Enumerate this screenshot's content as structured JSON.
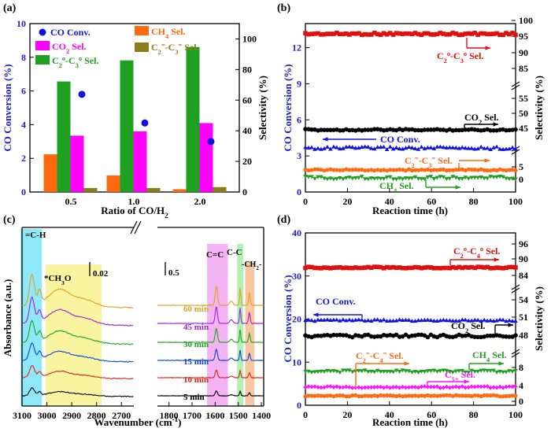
{
  "panels": {
    "a": {
      "label": "(a)"
    },
    "b": {
      "label": "(b)"
    },
    "c": {
      "label": "(c)"
    },
    "d": {
      "label": "(d)"
    }
  },
  "colors": {
    "co_conv": "#1010e0",
    "co2": "#ff00ff",
    "ch4": "#ff6a10",
    "c2c3_olefin": "#20a020",
    "c2c3_paraffin": "#8b7d1a",
    "olefin_red": "#e01010",
    "black": "#000000",
    "c5": "#ff10ff",
    "blue_axis": "#2020c0",
    "spec_black": "#000000",
    "spec_red": "#e02020",
    "spec_blue": "#1040e0",
    "spec_green": "#20a020",
    "spec_purple": "#a020e0",
    "spec_orange": "#e0a020",
    "band_cyan": "#8ee8f8",
    "band_yellow": "#f8f4a0",
    "band_pink": "#f4b4f4",
    "band_green": "#b4f0b4",
    "band_orange": "#f8c8a0"
  },
  "chart_data": [
    {
      "panel": "a",
      "type": "bar",
      "categories": [
        "0.5",
        "1.0",
        "2.0"
      ],
      "xlabel": "Ratio of CO/H2",
      "ylabel": "CO Conversion (%)",
      "ylabel2": "Selectivity (%)",
      "ylim": [
        0,
        10
      ],
      "ylim2": [
        0,
        110
      ],
      "yticks": [
        "0",
        "2",
        "4",
        "6",
        "8",
        "10"
      ],
      "yticks2": [
        "0",
        "20",
        "40",
        "60",
        "80",
        "100"
      ],
      "series": [
        {
          "name": "CH4 Sel.",
          "axis": "right",
          "values": [
            24.6,
            10.8,
            1.8
          ]
        },
        {
          "name": "C2o-C3o Sel.",
          "axis": "right",
          "values": [
            72.2,
            86.0,
            94.7
          ]
        },
        {
          "name": "CO2 Sel.",
          "axis": "right",
          "values": [
            36.8,
            39.6,
            45.0
          ]
        },
        {
          "name": "C2=-C3= Sel.",
          "axis": "right",
          "values": [
            2.6,
            2.6,
            3.2
          ]
        },
        {
          "name": "CO Conv.",
          "axis": "left",
          "kind": "point",
          "values": [
            5.8,
            4.1,
            3.0
          ]
        }
      ],
      "legend": [
        "CO Conv.",
        "CO2 Sel.",
        "C2o-C3o Sel.",
        "CH4 Sel.",
        "C2=-C3= Sel."
      ]
    },
    {
      "panel": "b",
      "type": "scatter",
      "xlabel": "Reaction time (h)",
      "ylabel": "CO Conversion (%)",
      "ylabel2": "Selectivity (%)",
      "xlim": [
        0,
        100
      ],
      "ylim": [
        0,
        14
      ],
      "xticks": [
        "0",
        "20",
        "40",
        "60",
        "80",
        "100"
      ],
      "yticks": [
        "0",
        "3",
        "6",
        "9",
        "12"
      ],
      "yticks2": [
        "0",
        "5",
        "45",
        "50",
        "55",
        "85",
        "90",
        "95",
        "100"
      ],
      "series": [
        {
          "name": "C2o-C3o Sel.",
          "axis": "right",
          "value": 97.5
        },
        {
          "name": "CO2 Sel.",
          "axis": "right",
          "value": 45.5
        },
        {
          "name": "CO Conv.",
          "axis": "left",
          "value": 3.5
        },
        {
          "name": "C2=-C3= Sel.",
          "axis": "right",
          "value": 3.0
        },
        {
          "name": "CH4 Sel.",
          "axis": "right",
          "value": 1.0
        }
      ]
    },
    {
      "panel": "c",
      "type": "line",
      "xlabel": "Wavenumber (cm-1)",
      "ylabel": "Absorbance (a.u.)",
      "xticks_left": [
        "3100",
        "3000",
        "2900",
        "2800",
        "2700"
      ],
      "xticks_right": [
        "1800",
        "1700",
        "1600",
        "1500",
        "1400"
      ],
      "scale_left": "0.02",
      "scale_right": "0.5",
      "band_labels": [
        "=C-H",
        "*CH3O",
        "C=C",
        "C-C",
        "-CH2-"
      ],
      "series": [
        {
          "name": "5 min"
        },
        {
          "name": "10 min"
        },
        {
          "name": "15 min"
        },
        {
          "name": "30 min"
        },
        {
          "name": "45 min"
        },
        {
          "name": "60 min"
        }
      ]
    },
    {
      "panel": "d",
      "type": "scatter",
      "xlabel": "Reaction time (h)",
      "ylabel": "CO Conversion (%)",
      "ylabel2": "Selectivity (%)",
      "xlim": [
        0,
        100
      ],
      "ylim": [
        0,
        40
      ],
      "xticks": [
        "0",
        "20",
        "40",
        "60",
        "80",
        "100"
      ],
      "yticks": [
        "0",
        "10",
        "20",
        "30",
        "40"
      ],
      "yticks2": [
        "0",
        "4",
        "8",
        "48",
        "51",
        "54",
        "84",
        "90",
        "96"
      ],
      "series": [
        {
          "name": "C2o-C4o Sel.",
          "axis": "right",
          "value": 86.5
        },
        {
          "name": "CO Conv.",
          "axis": "left",
          "value": 19.5
        },
        {
          "name": "CO2 Sel.",
          "axis": "right",
          "value": 48.0
        },
        {
          "name": "C2=-C4= Sel.",
          "axis": "right",
          "value": 7.5
        },
        {
          "name": "C5+ Sel.",
          "axis": "right",
          "value": 3.5
        },
        {
          "name": "CH4 Sel.",
          "axis": "right",
          "value": 1.8
        }
      ]
    }
  ]
}
